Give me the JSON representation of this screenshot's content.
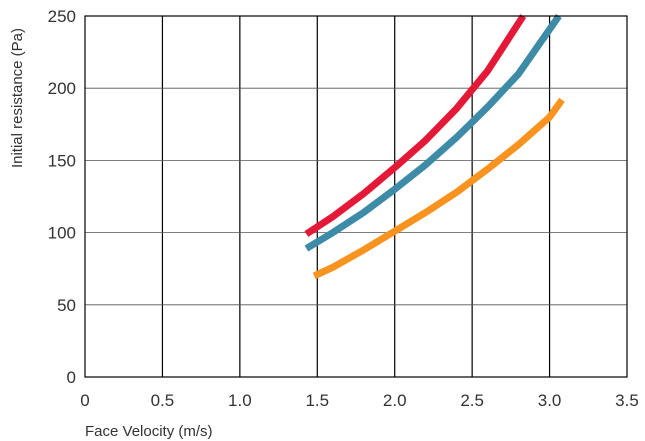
{
  "chart_data": {
    "type": "line",
    "title": "",
    "xlabel": "Face Velocity (m/s)",
    "ylabel": "Initial resistance (Pa)",
    "xlim": [
      0,
      3.5
    ],
    "ylim": [
      0,
      250
    ],
    "xticks": [
      0,
      0.5,
      1.0,
      1.5,
      2.0,
      2.5,
      3.0,
      3.5
    ],
    "xtick_labels": [
      "0",
      "0.5",
      "1.0",
      "1.5",
      "2.0",
      "2.5",
      "3.0",
      "3.5"
    ],
    "yticks": [
      0,
      50,
      100,
      150,
      200,
      250
    ],
    "ytick_labels": [
      "0",
      "50",
      "100",
      "150",
      "200",
      "250"
    ],
    "grid": true,
    "legend": "none",
    "series": [
      {
        "color": "#e31937",
        "x": [
          1.43,
          1.6,
          1.8,
          2.0,
          2.2,
          2.4,
          2.6,
          2.83
        ],
        "y": [
          99,
          111,
          127,
          145,
          164,
          186,
          212,
          250
        ]
      },
      {
        "color": "#3d8ba6",
        "x": [
          1.43,
          1.6,
          1.8,
          2.0,
          2.2,
          2.4,
          2.6,
          2.8,
          3.06
        ],
        "y": [
          89,
          100,
          114,
          130,
          147,
          166,
          187,
          210,
          250
        ]
      },
      {
        "color": "#f7931e",
        "x": [
          1.48,
          1.6,
          1.8,
          2.0,
          2.2,
          2.4,
          2.6,
          2.8,
          3.0,
          3.08
        ],
        "y": [
          70,
          76,
          88,
          101,
          114,
          128,
          144,
          161,
          180,
          192
        ]
      }
    ]
  }
}
